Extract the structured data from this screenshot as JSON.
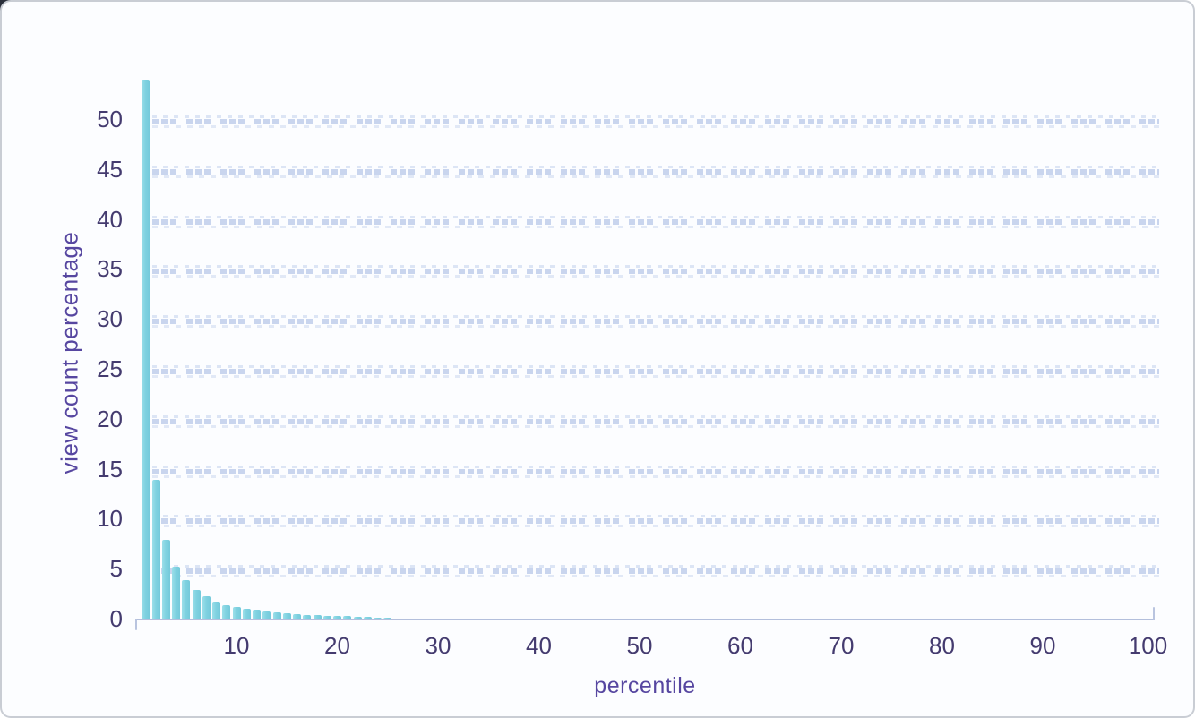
{
  "chart_data": {
    "type": "bar",
    "title": "",
    "xlabel": "percentile",
    "ylabel": "view count percentage",
    "x": [
      1,
      2,
      3,
      4,
      5,
      6,
      7,
      8,
      9,
      10,
      11,
      12,
      13,
      14,
      15,
      16,
      17,
      18,
      19,
      20,
      21,
      22,
      23,
      24,
      25
    ],
    "values": [
      54,
      14,
      8,
      5.3,
      3.9,
      3.0,
      2.3,
      1.8,
      1.45,
      1.25,
      1.1,
      0.95,
      0.8,
      0.7,
      0.6,
      0.5,
      0.45,
      0.42,
      0.38,
      0.35,
      0.32,
      0.28,
      0.25,
      0.22,
      0.2
    ],
    "xticks": [
      10,
      20,
      30,
      40,
      50,
      60,
      70,
      80,
      90,
      100
    ],
    "yticks": [
      0,
      5,
      10,
      15,
      20,
      25,
      30,
      35,
      40,
      45,
      50
    ],
    "xlim": [
      0,
      101
    ],
    "ylim": [
      0,
      54
    ],
    "grid": "faint dotted horizontal rows aligned with y gridlines",
    "legend": null
  },
  "colors": {
    "bar": "#80d2e1",
    "axis_line": "#b3bfdc",
    "tick_label": "#443b6f",
    "axis_title": "#5646a0",
    "background": "#fcfdff",
    "card_border": "#c9cdd4",
    "grid_row": "#c6d3ed"
  }
}
